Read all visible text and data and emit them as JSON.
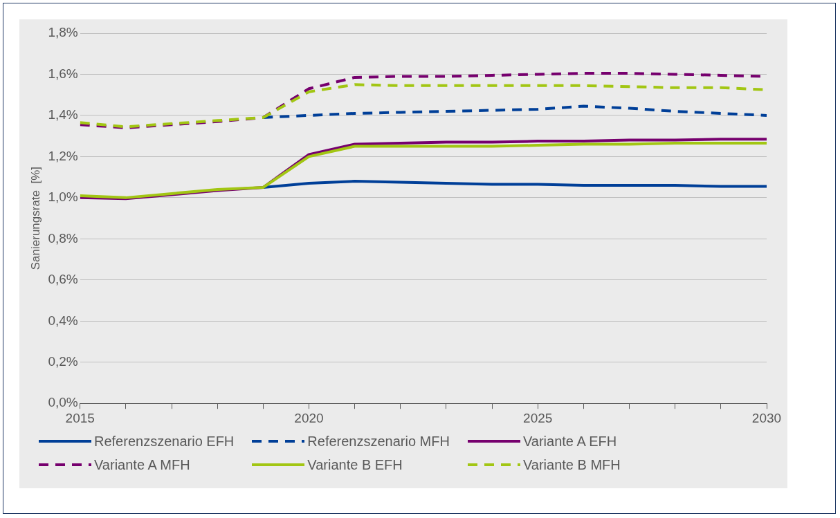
{
  "chart_data": {
    "type": "line",
    "ylabel": "Sanierungsrate  [%]",
    "x": [
      2015,
      2016,
      2017,
      2018,
      2019,
      2020,
      2021,
      2022,
      2023,
      2024,
      2025,
      2026,
      2027,
      2028,
      2029,
      2030
    ],
    "xlim": [
      2015,
      2030
    ],
    "xticks": [
      2015,
      {
        "value": 2016,
        "label": null
      },
      {
        "value": 2017,
        "label": null
      },
      {
        "value": 2018,
        "label": null
      },
      {
        "value": 2019,
        "label": null
      },
      2020,
      {
        "value": 2021,
        "label": null
      },
      {
        "value": 2022,
        "label": null
      },
      {
        "value": 2023,
        "label": null
      },
      {
        "value": 2024,
        "label": null
      },
      2025,
      {
        "value": 2026,
        "label": null
      },
      {
        "value": 2027,
        "label": null
      },
      {
        "value": 2028,
        "label": null
      },
      {
        "value": 2029,
        "label": null
      },
      2030
    ],
    "ylim": [
      0,
      1.8
    ],
    "yticks": [
      {
        "value": 0,
        "label": "0,0%"
      },
      {
        "value": 0.2,
        "label": "0,2%"
      },
      {
        "value": 0.4,
        "label": "0,4%"
      },
      {
        "value": 0.6,
        "label": "0,6%"
      },
      {
        "value": 0.8,
        "label": "0,8%"
      },
      {
        "value": 1,
        "label": "1,0%"
      },
      {
        "value": 1.2,
        "label": "1,2%"
      },
      {
        "value": 1.4,
        "label": "1,4%"
      },
      {
        "value": 1.6,
        "label": "1,6%"
      },
      {
        "value": 1.8,
        "label": "1,8%"
      }
    ],
    "grid": "y",
    "legend": "bottom",
    "marker": "none",
    "series": [
      {
        "name": "Referenzszenario EFH",
        "color": "#003f98",
        "line_style": "solid",
        "values": [
          null,
          null,
          null,
          null,
          1.05,
          1.07,
          1.08,
          1.075,
          1.07,
          1.065,
          1.065,
          1.06,
          1.06,
          1.06,
          1.055,
          1.055
        ]
      },
      {
        "name": "Referenzszenario MFH",
        "color": "#003f98",
        "line_style": "dashed",
        "values": [
          null,
          null,
          null,
          null,
          1.39,
          1.4,
          1.41,
          1.415,
          1.42,
          1.425,
          1.43,
          1.445,
          1.435,
          1.42,
          1.41,
          1.4
        ]
      },
      {
        "name": "Variante A EFH",
        "color": "#76006e",
        "line_style": "solid",
        "values": [
          1.0,
          0.995,
          1.015,
          1.035,
          1.05,
          1.21,
          1.26,
          1.265,
          1.27,
          1.27,
          1.275,
          1.275,
          1.28,
          1.28,
          1.285,
          1.285
        ]
      },
      {
        "name": "Variante A MFH",
        "color": "#76006e",
        "line_style": "dashed",
        "values": [
          1.355,
          1.34,
          1.355,
          1.37,
          1.39,
          1.53,
          1.585,
          1.59,
          1.59,
          1.595,
          1.6,
          1.605,
          1.605,
          1.6,
          1.595,
          1.59
        ]
      },
      {
        "name": "Variante B EFH",
        "color": "#a2c613",
        "line_style": "solid",
        "values": [
          1.01,
          1.0,
          1.02,
          1.04,
          1.05,
          1.2,
          1.25,
          1.25,
          1.25,
          1.25,
          1.255,
          1.26,
          1.26,
          1.265,
          1.265,
          1.265
        ]
      },
      {
        "name": "Variante B MFH",
        "color": "#a2c613",
        "line_style": "dashed",
        "values": [
          1.365,
          1.345,
          1.36,
          1.375,
          1.39,
          1.515,
          1.55,
          1.545,
          1.545,
          1.545,
          1.545,
          1.545,
          1.54,
          1.535,
          1.535,
          1.525
        ]
      }
    ]
  }
}
